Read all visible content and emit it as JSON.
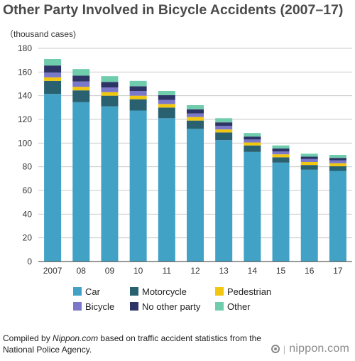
{
  "title": "Other Party Involved in Bicycle Accidents (2007–17)",
  "unit_label": "（thousand cases)",
  "source": {
    "prefix": "Compiled by ",
    "site": "Nippon.com",
    "suffix": " based on traffic accident statistics from the National Police Agency."
  },
  "logo": {
    "text": "nippon.com"
  },
  "chart_data": {
    "type": "bar",
    "stacked": true,
    "ylim": [
      0,
      180
    ],
    "yticks": [
      0,
      20,
      40,
      60,
      80,
      100,
      120,
      140,
      160,
      180
    ],
    "ylabel": "（thousand cases)",
    "grid": true,
    "legend_position": "bottom",
    "categories": [
      "2007",
      "08",
      "09",
      "10",
      "11",
      "12",
      "13",
      "14",
      "15",
      "16",
      "17"
    ],
    "series": [
      {
        "name": "Car",
        "color": "#41a2c6",
        "values": [
          141.5,
          134.5,
          131,
          127.5,
          121,
          112,
          102.5,
          92.5,
          83.5,
          77.5,
          76.5
        ]
      },
      {
        "name": "Motorcycle",
        "color": "#2a6170",
        "values": [
          11,
          10,
          9,
          9.5,
          9,
          7,
          6.5,
          5.5,
          4.5,
          4,
          4
        ]
      },
      {
        "name": "Pedestrian",
        "color": "#f2c70f",
        "values": [
          3,
          3,
          3,
          3,
          3,
          3,
          2.5,
          2.5,
          2.5,
          2.5,
          2.5
        ]
      },
      {
        "name": "Bicycle",
        "color": "#7b78c9",
        "values": [
          4,
          4.5,
          4,
          4,
          3.5,
          3,
          3,
          2.5,
          2.5,
          2.5,
          2.5
        ]
      },
      {
        "name": "No other party",
        "color": "#2d3566",
        "values": [
          6,
          5,
          4.5,
          4,
          4,
          3.5,
          3,
          2.5,
          2.5,
          2,
          2
        ]
      },
      {
        "name": "Other",
        "color": "#6fccad",
        "values": [
          5.5,
          5.5,
          5,
          4.5,
          3.5,
          3.5,
          3.5,
          3,
          2.5,
          2.5,
          2.5
        ]
      }
    ]
  }
}
